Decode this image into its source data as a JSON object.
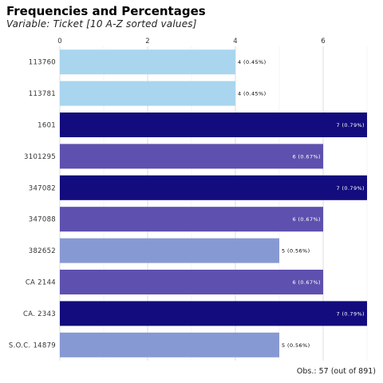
{
  "title": "Frequencies and Percentages",
  "subtitle": "Variable: Ticket [10 A-Z sorted values]",
  "caption": "Obs.: 57 (out of 891)",
  "chart_data": {
    "type": "bar",
    "orientation": "horizontal",
    "title": "Frequencies and Percentages",
    "subtitle": "Variable: Ticket [10 A-Z sorted values]",
    "caption": "Obs.: 57 (out of 891)",
    "categories": [
      "113760",
      "113781",
      "1601",
      "3101295",
      "347082",
      "347088",
      "382652",
      "CA 2144",
      "CA. 2343",
      "S.O.C. 14879"
    ],
    "values": [
      4,
      4,
      7,
      6,
      7,
      6,
      5,
      6,
      7,
      5
    ],
    "labels": [
      "4 (0.45%)",
      "4 (0.45%)",
      "7 (0.79%)",
      "6 (0.67%)",
      "7 (0.79%)",
      "6 (0.67%)",
      "5 (0.56%)",
      "6 (0.67%)",
      "7 (0.79%)",
      "5 (0.56%)"
    ],
    "xlim": [
      0,
      7
    ],
    "x_ticks": [
      0,
      2,
      4,
      6
    ],
    "x_axis_position": "top",
    "grid": true,
    "legend": "none",
    "colors_by_value": {
      "4": "#a9d5ef",
      "5": "#8799d3",
      "6": "#5e50ae",
      "7": "#120c7e"
    },
    "label_colors": {
      "light": "#000000",
      "dark": "#ffffff"
    }
  }
}
